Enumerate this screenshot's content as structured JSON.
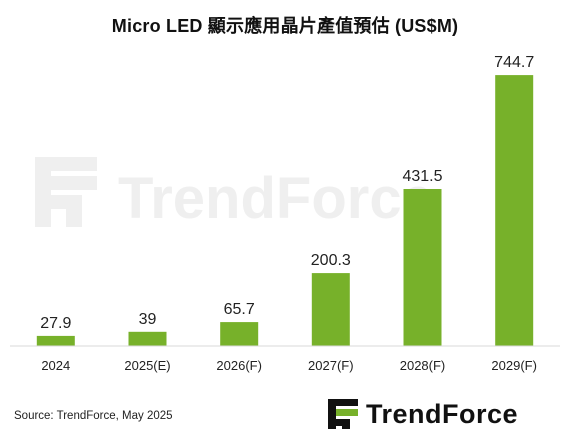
{
  "title": "Micro LED 顯示應用晶片產值預估 (US$M)",
  "source": "Source: TrendForce, May 2025",
  "logo_text": "TrendForce",
  "watermark_text": "TrendForce",
  "colors": {
    "bar": "#77b12a",
    "axis": "#d9d9d9",
    "text": "#222222",
    "watermark": "#efefef"
  },
  "chart_data": {
    "type": "bar",
    "title": "Micro LED 顯示應用晶片產值預估 (US$M)",
    "categories": [
      "2024",
      "2025(E)",
      "2026(F)",
      "2027(F)",
      "2028(F)",
      "2029(F)"
    ],
    "values": [
      27.9,
      39,
      65.7,
      200.3,
      431.5,
      744.7
    ],
    "value_labels": [
      "27.9",
      "39",
      "65.7",
      "200.3",
      "431.5",
      "744.7"
    ],
    "ylim": [
      0,
      800
    ],
    "grid": false,
    "legend": "none"
  }
}
